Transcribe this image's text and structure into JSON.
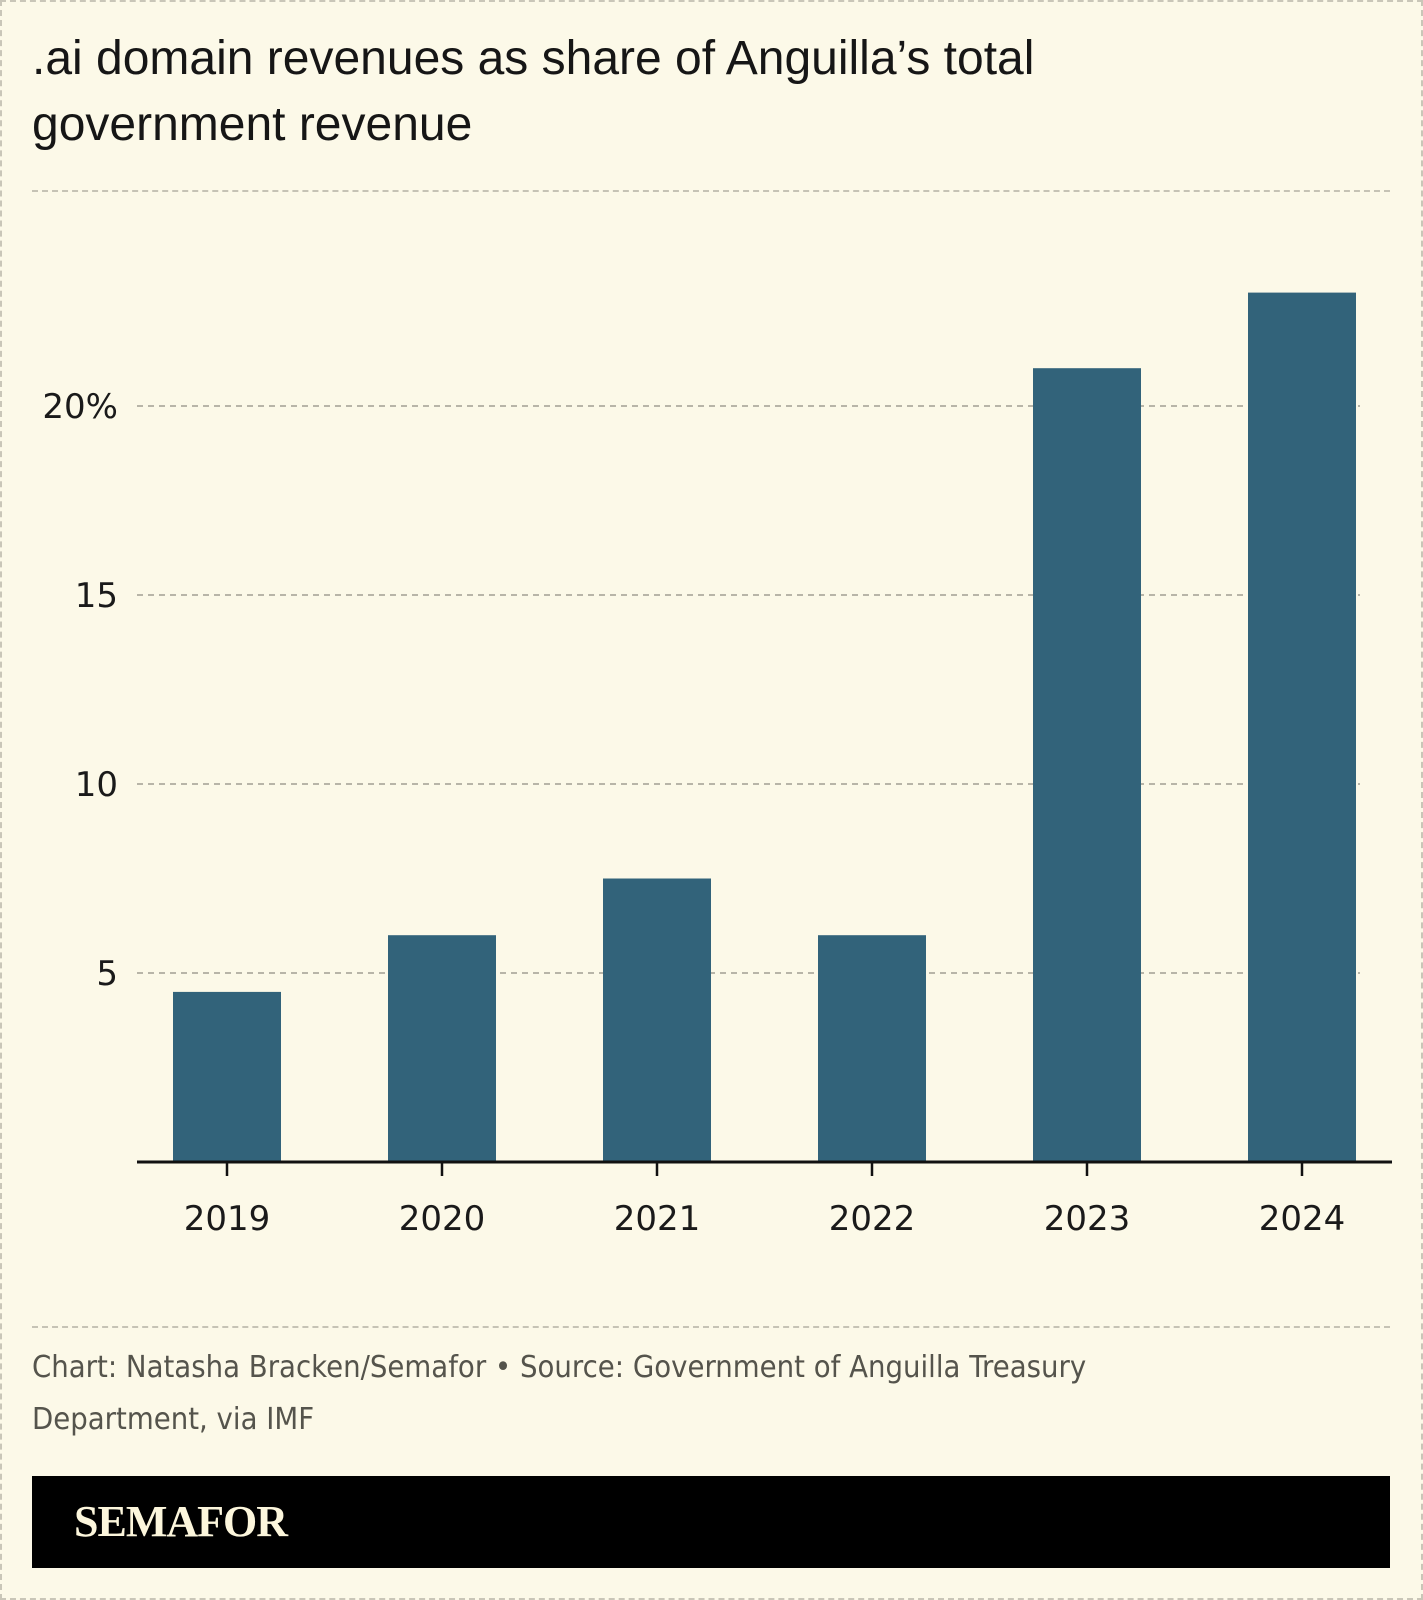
{
  "title": ".ai domain revenues as share of Anguilla’s total government revenue",
  "credit": "Chart: Natasha Bracken/Semafor • Source: Government of Anguilla Treasury Department, via IMF",
  "brand": "SEMAFOR",
  "colors": {
    "background": "#fcf9e8",
    "bar": "#32637a",
    "grid": "#b8b5a8",
    "axis": "#111111",
    "brand_bar": "#000000"
  },
  "chart_data": {
    "type": "bar",
    "title": ".ai domain revenues as share of Anguilla’s total government revenue",
    "xlabel": "",
    "ylabel": "",
    "categories": [
      "2019",
      "2020",
      "2021",
      "2022",
      "2023",
      "2024"
    ],
    "values": [
      4.5,
      6.0,
      7.5,
      6.0,
      21.0,
      23.0
    ],
    "unit": "%",
    "ylim": [
      0,
      25
    ],
    "yticks": [
      5,
      10,
      15,
      20
    ],
    "ytick_labels": [
      "5",
      "10",
      "15",
      "20%"
    ],
    "grid": true,
    "legend": "none"
  }
}
